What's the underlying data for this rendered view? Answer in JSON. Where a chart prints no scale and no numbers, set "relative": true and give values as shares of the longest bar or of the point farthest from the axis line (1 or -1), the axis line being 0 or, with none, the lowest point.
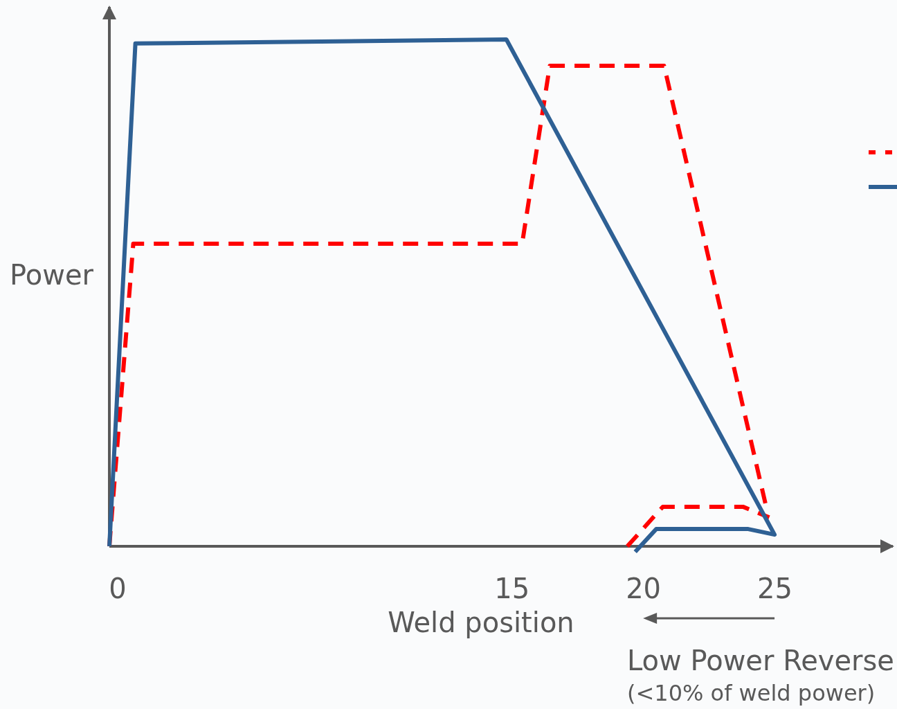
{
  "chart_data": {
    "type": "line",
    "relative": true,
    "xlabel": "Weld position",
    "ylabel": "Power",
    "xlim": [
      -0.3,
      29.5
    ],
    "xticks": [
      0,
      15,
      20,
      25
    ],
    "annotations": [
      "Low Power Reverse",
      "(<10% of weld power)"
    ],
    "series": [
      {
        "color": "#ff0000",
        "line_style": "dashed",
        "x": [
          -0.3,
          0.61,
          15.4,
          16.45,
          20.8,
          24.7,
          null,
          19.4,
          20.75,
          23.8,
          24.8
        ],
        "values": [
          0,
          0.597,
          0.597,
          0.948,
          0.948,
          0.074,
          null,
          0,
          0.078,
          0.078,
          0.057
        ]
      },
      {
        "color": "#2e6094",
        "line_style": "solid",
        "x": [
          -0.3,
          0.69,
          14.8,
          25,
          24,
          20.5,
          19.7
        ],
        "values": [
          0,
          0.992,
          1,
          0.023,
          0.034,
          0.034,
          -0.011
        ]
      }
    ]
  }
}
